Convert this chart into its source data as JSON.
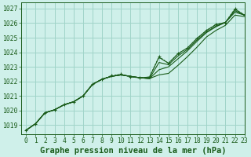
{
  "title": "Graphe pression niveau de la mer (hPa)",
  "background_color": "#cff0ea",
  "plot_bg_color": "#cff0ea",
  "grid_color": "#a0d4c8",
  "line_color": "#1a5c1a",
  "xlim": [
    -0.5,
    23
  ],
  "ylim": [
    1018.4,
    1027.4
  ],
  "yticks": [
    1019,
    1020,
    1021,
    1022,
    1023,
    1024,
    1025,
    1026,
    1027
  ],
  "xticks": [
    0,
    1,
    2,
    3,
    4,
    5,
    6,
    7,
    8,
    9,
    10,
    11,
    12,
    13,
    14,
    15,
    16,
    17,
    18,
    19,
    20,
    21,
    22,
    23
  ],
  "series": [
    [
      1018.65,
      1019.1,
      1019.85,
      1020.05,
      1020.4,
      1020.6,
      1021.0,
      1021.8,
      1022.15,
      1022.35,
      1022.45,
      1022.35,
      1022.25,
      1022.2,
      1022.45,
      1022.55,
      1023.1,
      1023.7,
      1024.35,
      1025.05,
      1025.5,
      1025.85,
      1026.55,
      1026.45
    ],
    [
      1018.65,
      1019.1,
      1019.85,
      1020.05,
      1020.4,
      1020.6,
      1021.0,
      1021.8,
      1022.15,
      1022.35,
      1022.45,
      1022.35,
      1022.25,
      1022.2,
      1022.8,
      1023.0,
      1023.55,
      1024.1,
      1024.75,
      1025.35,
      1025.75,
      1026.05,
      1026.75,
      1026.55
    ],
    [
      1018.65,
      1019.1,
      1019.85,
      1020.05,
      1020.4,
      1020.6,
      1021.0,
      1021.8,
      1022.15,
      1022.35,
      1022.45,
      1022.35,
      1022.25,
      1022.2,
      1023.3,
      1023.15,
      1023.75,
      1024.2,
      1024.85,
      1025.4,
      1025.8,
      1026.05,
      1026.85,
      1026.55
    ],
    [
      1018.65,
      1019.1,
      1019.85,
      1020.05,
      1020.4,
      1020.6,
      1021.0,
      1021.8,
      1022.15,
      1022.35,
      1022.45,
      1022.35,
      1022.25,
      1022.3,
      1023.65,
      1023.25,
      1023.9,
      1024.3,
      1024.95,
      1025.5,
      1025.9,
      1026.05,
      1026.95,
      1026.55
    ]
  ],
  "marked_series_idx": 3,
  "marker_overrides": {
    "9": 1022.4,
    "10": 1022.5,
    "11": 1022.3,
    "14": 1023.7,
    "22": 1027.0
  },
  "title_fontsize": 7.5,
  "tick_fontsize": 5.8
}
